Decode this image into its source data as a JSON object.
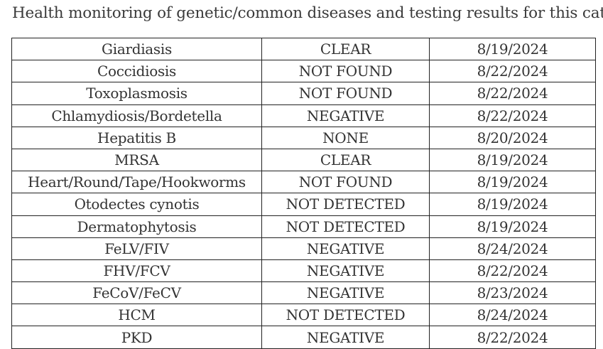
{
  "heading": "Health monitoring of genetic/common diseases and testing results for this cat:",
  "rows": [
    {
      "test": "Giardiasis",
      "result": "CLEAR",
      "date": "8/19/2024"
    },
    {
      "test": "Coccidiosis",
      "result": "NOT FOUND",
      "date": "8/22/2024"
    },
    {
      "test": "Toxoplasmosis",
      "result": "NOT FOUND",
      "date": "8/22/2024"
    },
    {
      "test": "Chlamydiosis/Bordetella",
      "result": "NEGATIVE",
      "date": "8/22/2024"
    },
    {
      "test": "Hepatitis B",
      "result": "NONE",
      "date": "8/20/2024"
    },
    {
      "test": "MRSA",
      "result": "CLEAR",
      "date": "8/19/2024"
    },
    {
      "test": "Heart/Round/Tape/Hookworms",
      "result": "NOT FOUND",
      "date": "8/19/2024"
    },
    {
      "test": "Otodectes cynotis",
      "result": "NOT DETECTED",
      "date": "8/19/2024"
    },
    {
      "test": "Dermatophytosis",
      "result": "NOT DETECTED",
      "date": "8/19/2024"
    },
    {
      "test": "FeLV/FIV",
      "result": "NEGATIVE",
      "date": "8/24/2024"
    },
    {
      "test": "FHV/FCV",
      "result": "NEGATIVE",
      "date": "8/22/2024"
    },
    {
      "test": "FeCoV/FeCV",
      "result": "NEGATIVE",
      "date": "8/23/2024"
    },
    {
      "test": "HCM",
      "result": "NOT DETECTED",
      "date": "8/24/2024"
    },
    {
      "test": "PKD",
      "result": "NEGATIVE",
      "date": "8/22/2024"
    }
  ]
}
